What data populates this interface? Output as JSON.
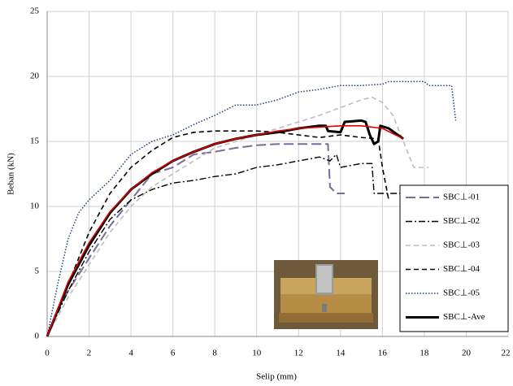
{
  "chart_data": {
    "type": "line",
    "x_label": "Selip (mm)",
    "y_label": "Beban (kN)",
    "xlim": [
      0,
      22
    ],
    "xticks": [
      0,
      2,
      4,
      6,
      8,
      10,
      12,
      14,
      16,
      18,
      20,
      22
    ],
    "ylim": [
      0,
      25
    ],
    "yticks": [
      0,
      5,
      10,
      15,
      20,
      25
    ],
    "grid": true,
    "legend": "lower-right",
    "series": [
      {
        "name": "SBC⊥-01",
        "color": "#7b6a9a",
        "style": "long-dash",
        "x": [
          0,
          0.5,
          1,
          2,
          3,
          4,
          5,
          6,
          7,
          8,
          9,
          10,
          11,
          12,
          13,
          13.4,
          13.5,
          13.8,
          14.2
        ],
        "values": [
          0,
          2,
          3.5,
          6,
          8.5,
          10.5,
          12.5,
          13,
          14,
          14.2,
          14.5,
          14.7,
          14.8,
          14.8,
          14.8,
          14.8,
          11.5,
          11,
          11
        ]
      },
      {
        "name": "SBC⊥-02",
        "color": "#000000",
        "style": "dash-dot",
        "x": [
          0,
          1,
          2,
          3,
          4,
          5,
          6,
          7,
          8,
          9,
          10,
          11,
          12,
          13,
          13.5,
          13.8,
          14,
          15,
          15.5,
          15.6,
          16,
          17
        ],
        "values": [
          0,
          3.5,
          6.5,
          9,
          10.5,
          11.3,
          11.8,
          12,
          12.3,
          12.5,
          13,
          13.2,
          13.5,
          13.8,
          13.5,
          14,
          13,
          13.3,
          13.3,
          11,
          11,
          11
        ]
      },
      {
        "name": "SBC⊥-03",
        "color": "#bdbdbd",
        "style": "dash",
        "x": [
          0,
          1,
          2,
          3,
          4,
          5,
          6,
          7,
          8,
          9,
          10,
          11,
          12,
          13,
          14,
          15,
          15.5,
          16,
          16.5,
          17,
          17.5,
          18.2
        ],
        "values": [
          0,
          3,
          5.5,
          8,
          10,
          11.5,
          12.5,
          13.5,
          14.5,
          15,
          15.5,
          16,
          16.5,
          17,
          17.6,
          18.2,
          18.4,
          18,
          17,
          15,
          13,
          13
        ]
      },
      {
        "name": "SBC⊥-04",
        "color": "#000000",
        "style": "dash",
        "x": [
          0,
          1,
          2,
          3,
          4,
          5,
          6,
          7,
          8,
          9,
          10,
          11,
          12,
          13,
          14,
          15,
          15.8,
          16,
          16.3
        ],
        "values": [
          0,
          4,
          8,
          11,
          13,
          14.3,
          15.3,
          15.7,
          15.8,
          15.8,
          15.8,
          15.7,
          15.5,
          15.3,
          15.5,
          15.3,
          15.2,
          13,
          10.5
        ]
      },
      {
        "name": "SBC⊥-05",
        "color": "#1f3f7a",
        "style": "dot",
        "x": [
          0,
          0.5,
          1,
          1.5,
          2,
          3,
          4,
          5,
          6,
          7,
          8,
          9,
          10,
          11,
          12,
          13,
          14,
          15,
          16,
          16.3,
          17,
          18,
          18.2,
          19.3,
          19.5
        ],
        "values": [
          0,
          4,
          7.5,
          9.5,
          10.5,
          12,
          14,
          15,
          15.5,
          16.3,
          17,
          17.8,
          17.8,
          18.2,
          18.8,
          19,
          19.3,
          19.3,
          19.4,
          19.6,
          19.6,
          19.6,
          19.3,
          19.3,
          16.6
        ]
      },
      {
        "name": "SBC⊥-Ave",
        "color": "#000000",
        "style": "thick",
        "x": [
          0,
          1,
          2,
          3,
          4,
          5,
          6,
          7,
          8,
          9,
          10,
          11,
          12,
          13,
          13.3,
          13.4,
          14,
          14.2,
          15,
          15.2,
          15.4,
          15.6,
          15.8,
          15.9,
          16.3,
          17
        ],
        "values": [
          0,
          4,
          7,
          9.5,
          11.3,
          12.5,
          13.5,
          14.2,
          14.8,
          15.2,
          15.5,
          15.7,
          16,
          16.2,
          16.2,
          15.8,
          15.7,
          16.5,
          16.6,
          16.5,
          15.5,
          14.8,
          15,
          16.2,
          16,
          15.2
        ]
      },
      {
        "color": "#e00000",
        "style": "solid",
        "x": [
          0,
          1,
          2,
          3,
          4,
          5,
          6,
          7,
          8,
          9,
          10,
          11,
          12,
          13,
          14,
          15,
          16,
          17
        ],
        "values": [
          0,
          4.2,
          7.2,
          9.6,
          11.3,
          12.6,
          13.5,
          14.2,
          14.8,
          15.2,
          15.5,
          15.8,
          16,
          16.1,
          16.2,
          16.2,
          16,
          15.2
        ]
      }
    ]
  }
}
